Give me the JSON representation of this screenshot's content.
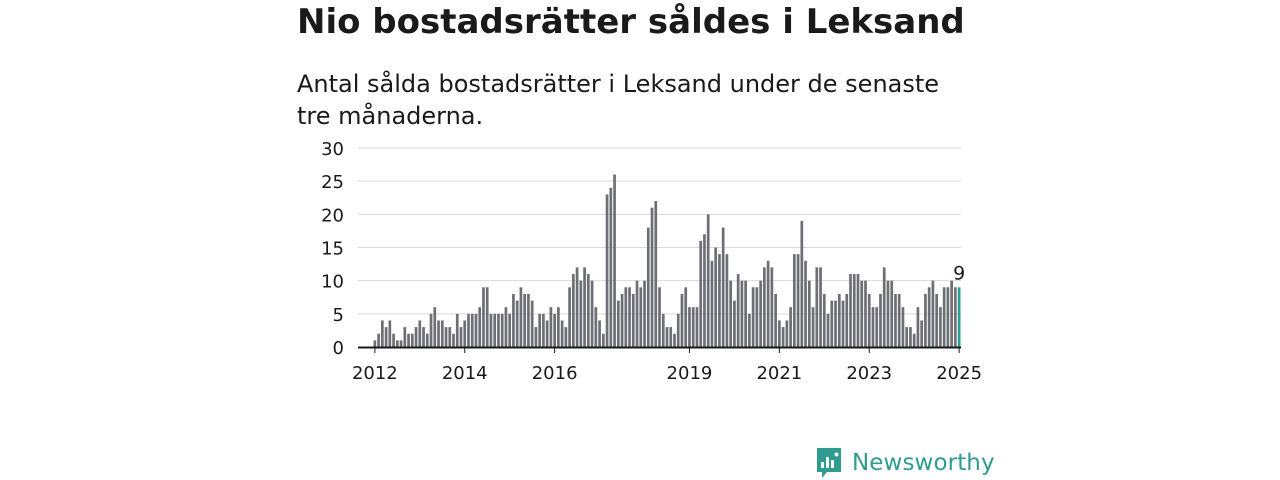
{
  "title": "Nio bostadsrätter såldes i Leksand",
  "subtitle": "Antal sålda bostadsrätter i Leksand under de senaste tre månaderna.",
  "brand": {
    "name": "Newsworthy",
    "icon": "newsworthy-logo-icon",
    "color": "#2e9c8e"
  },
  "chart_data": {
    "type": "bar",
    "title": "Nio bostadsrätter såldes i Leksand",
    "subtitle": "Antal sålda bostadsrätter i Leksand under de senaste tre månaderna.",
    "xlabel": "",
    "ylabel": "",
    "ylim": [
      0,
      30
    ],
    "yticks": [
      0,
      5,
      10,
      15,
      20,
      25,
      30
    ],
    "xticks": [
      "2012",
      "2014",
      "2016",
      "2019",
      "2021",
      "2023",
      "2025"
    ],
    "grid": true,
    "bar_color": "#6e6e75",
    "highlight_color": "#2aa198",
    "highlight_label": "9",
    "start_period": "2011-09",
    "period": "monthly (rolling three-month totals)",
    "values": [
      0,
      0,
      0,
      0,
      1,
      2,
      4,
      3,
      4,
      2,
      1,
      1,
      3,
      2,
      2,
      3,
      4,
      3,
      2,
      5,
      6,
      4,
      4,
      3,
      3,
      2,
      5,
      3,
      4,
      5,
      5,
      5,
      6,
      9,
      9,
      5,
      5,
      5,
      5,
      6,
      5,
      8,
      7,
      9,
      8,
      8,
      7,
      3,
      5,
      5,
      4,
      6,
      5,
      6,
      4,
      3,
      9,
      11,
      12,
      10,
      12,
      11,
      10,
      6,
      4,
      2,
      23,
      24,
      26,
      7,
      8,
      9,
      9,
      8,
      10,
      9,
      10,
      18,
      21,
      22,
      9,
      5,
      3,
      3,
      2,
      5,
      8,
      9,
      6,
      6,
      6,
      16,
      17,
      20,
      13,
      15,
      14,
      18,
      14,
      10,
      7,
      11,
      10,
      10,
      5,
      9,
      9,
      10,
      12,
      13,
      12,
      8,
      4,
      3,
      4,
      6,
      14,
      14,
      19,
      13,
      10,
      6,
      12,
      12,
      8,
      5,
      7,
      7,
      8,
      7,
      8,
      11,
      11,
      11,
      10,
      10,
      8,
      6,
      6,
      8,
      12,
      10,
      10,
      8,
      8,
      6,
      3,
      3,
      2,
      6,
      4,
      8,
      9,
      10,
      8,
      6,
      9,
      9,
      10,
      9,
      9
    ]
  }
}
